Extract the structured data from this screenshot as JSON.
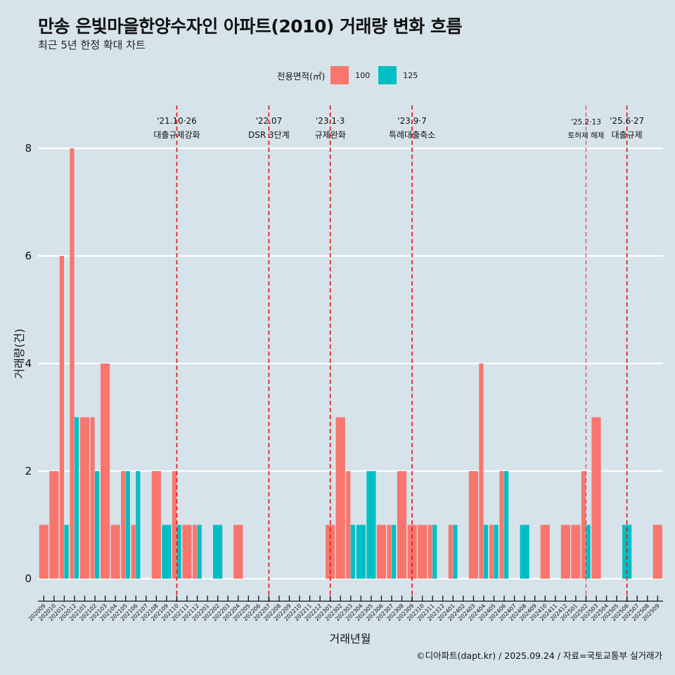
{
  "header": {
    "title": "만송 은빛마을한양수자인 아파트(2010) 거래량 변화 흐름",
    "subtitle": "최근 5년 한정 확대 차트"
  },
  "legend": {
    "title": "전용면적(㎡)",
    "items": [
      {
        "label": "100",
        "color": "#f8766d"
      },
      {
        "label": "125",
        "color": "#00bfc4"
      }
    ]
  },
  "caption": "©디아파트(dapt.kr) / 2025.09.24 / 자료=국토교통부 실거래가",
  "chart_data": {
    "type": "bar",
    "title": "만송 은빛마을한양수자인 아파트(2010) 거래량 변화 흐름",
    "subtitle": "최근 5년 한정 확대 차트",
    "xlabel": "거래년월",
    "ylabel": "거래량(건)",
    "ylim": [
      0,
      8.5
    ],
    "yticks": [
      0,
      2,
      4,
      6,
      8
    ],
    "grid": true,
    "legend_position": "top",
    "categories": [
      "202009",
      "202010",
      "202011",
      "202012",
      "202101",
      "202102",
      "202103",
      "202104",
      "202105",
      "202106",
      "202107",
      "202108",
      "202109",
      "202110",
      "202111",
      "202112",
      "202201",
      "202202",
      "202203",
      "202204",
      "202205",
      "202206",
      "202207",
      "202208",
      "202209",
      "202210",
      "202211",
      "202212",
      "202301",
      "202302",
      "202303",
      "202304",
      "202305",
      "202306",
      "202307",
      "202308",
      "202309",
      "202310",
      "202311",
      "202312",
      "202401",
      "202402",
      "202403",
      "202404",
      "202405",
      "202406",
      "202407",
      "202408",
      "202409",
      "202410",
      "202411",
      "202412",
      "202501",
      "202502",
      "202503",
      "202504",
      "202505",
      "202506",
      "202507",
      "202508",
      "202509"
    ],
    "series": [
      {
        "name": "100",
        "color": "#f8766d",
        "values": [
          1,
          2,
          6,
          8,
          3,
          3,
          4,
          1,
          2,
          1,
          0,
          2,
          0,
          2,
          1,
          1,
          0,
          0,
          0,
          1,
          0,
          0,
          0,
          0,
          0,
          0,
          0,
          0,
          1,
          3,
          2,
          0,
          0,
          1,
          1,
          2,
          1,
          1,
          1,
          0,
          1,
          0,
          2,
          4,
          1,
          2,
          0,
          0,
          0,
          1,
          0,
          1,
          1,
          2,
          3,
          0,
          0,
          0,
          0,
          0,
          1
        ]
      },
      {
        "name": "125",
        "color": "#00bfc4",
        "values": [
          0,
          0,
          1,
          3,
          0,
          2,
          0,
          0,
          2,
          2,
          0,
          0,
          1,
          1,
          0,
          1,
          0,
          1,
          0,
          0,
          0,
          0,
          0,
          0,
          0,
          0,
          0,
          0,
          0,
          0,
          1,
          1,
          2,
          0,
          1,
          0,
          0,
          0,
          1,
          0,
          1,
          0,
          0,
          1,
          1,
          2,
          0,
          1,
          0,
          0,
          0,
          0,
          0,
          1,
          0,
          0,
          0,
          1,
          0,
          0,
          0
        ]
      }
    ],
    "events": [
      {
        "month": "202110",
        "date": "'21.10·26",
        "label": "대출규제강화",
        "style": "bold"
      },
      {
        "month": "202207",
        "date": "'22.07",
        "label": "DSR 3단계",
        "style": "bold"
      },
      {
        "month": "202301",
        "date": "'23.1·3",
        "label": "규제완화",
        "style": "bold"
      },
      {
        "month": "202309",
        "date": "'23.9·7",
        "label": "특례대출축소",
        "style": "bold"
      },
      {
        "month": "202502",
        "date": "'25.2·13",
        "label": "토허제 해제",
        "style": "light"
      },
      {
        "month": "202506",
        "date": "'25.6·27",
        "label": "대출규제",
        "style": "bold"
      }
    ],
    "event_line_color": "#e41a1c"
  }
}
